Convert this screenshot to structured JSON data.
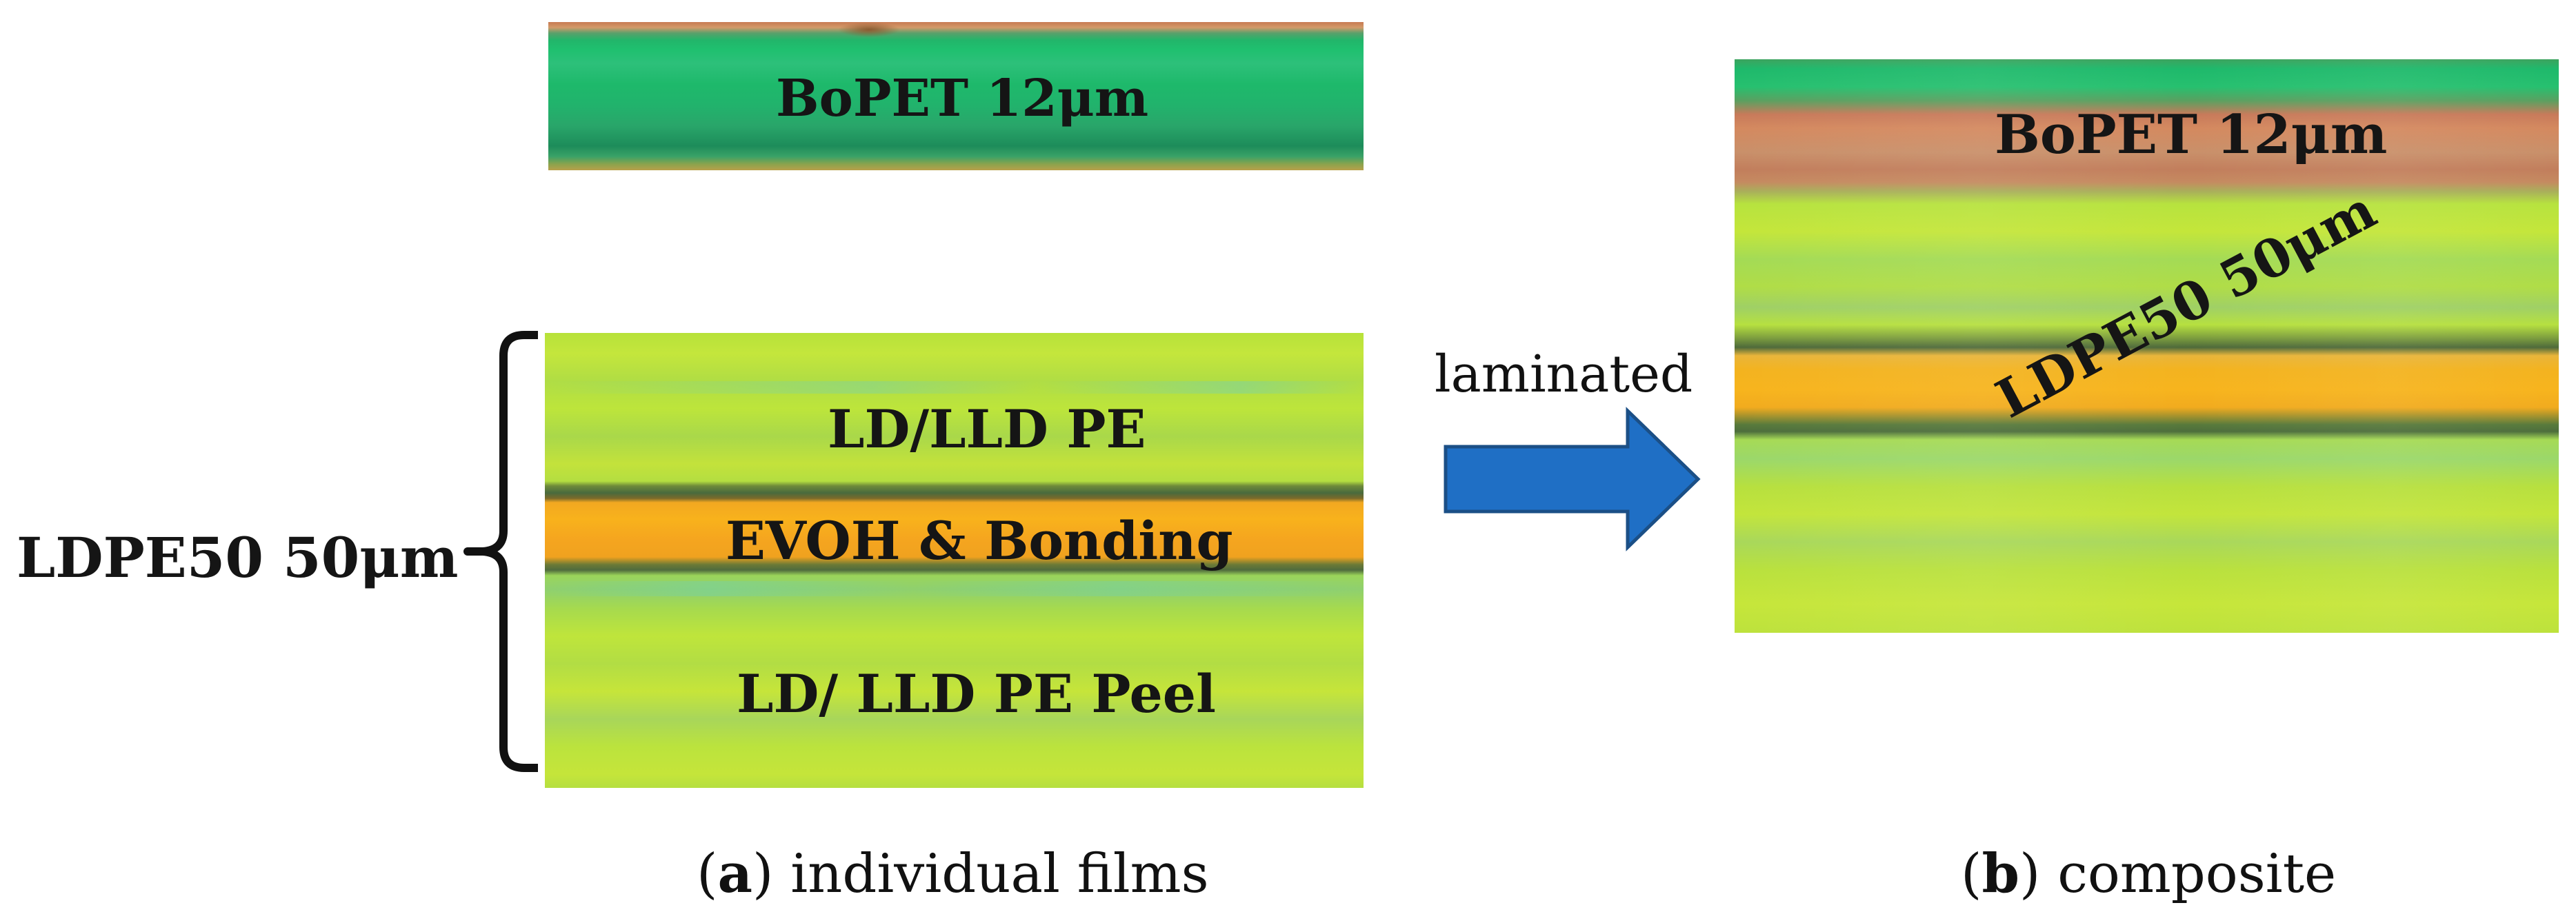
{
  "panel_a": {
    "bopet_label": "BoPET 12μm",
    "layer_top": "LD/LLD PE",
    "layer_middle": "EVOH & Bonding",
    "layer_bottom": "LD/ LLD PE Peel",
    "brace_label": "LDPE50 50μm",
    "caption_letter": "a",
    "caption_text": "individual films"
  },
  "arrow": {
    "label": "laminated",
    "color": "#1f6fc5"
  },
  "panel_b": {
    "bopet_label": "BoPET 12μm",
    "ldpe_label": "LDPE50 50μm",
    "caption_letter": "b",
    "caption_text": "composite"
  }
}
